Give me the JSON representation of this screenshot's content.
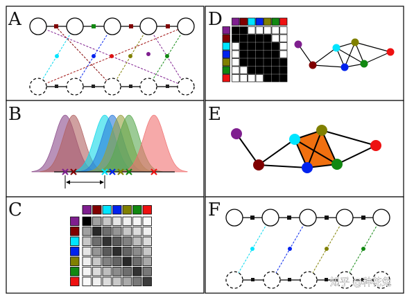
{
  "panels": {
    "a": {
      "letter": "A"
    },
    "b": {
      "letter": "B"
    },
    "c": {
      "letter": "C"
    },
    "d": {
      "letter": "D"
    },
    "e": {
      "letter": "E"
    },
    "f": {
      "letter": "F"
    }
  },
  "node_colors": [
    "#7f1f8f",
    "#800000",
    "#00e5ff",
    "#0022ee",
    "#808000",
    "#118811",
    "#ee1111"
  ],
  "curve_colors": [
    "#8a4a8a",
    "#b06060",
    "#10d8e8",
    "#2a7ad8",
    "#98a040",
    "#5aa850",
    "#f07070"
  ],
  "watermark": "知乎 @种花兔"
}
